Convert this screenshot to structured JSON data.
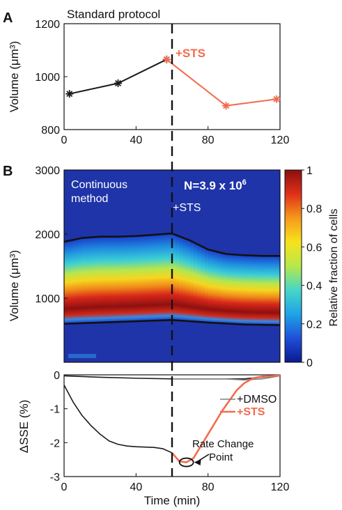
{
  "colors": {
    "black_series": "#1a1a1a",
    "sts": "#f26b4e",
    "dmso": "#808080",
    "heatmap_bg": "#1f34a8",
    "colormap": [
      "#0a1a8f",
      "#1f4fd8",
      "#1fa3e6",
      "#46d6c8",
      "#b6e84a",
      "#f7e31c",
      "#f59a1a",
      "#e0301a",
      "#8a0f0f"
    ]
  },
  "chart_data": [
    {
      "panel_label": "A",
      "type": "line",
      "title": "Standard protocol",
      "xlim": [
        0,
        120
      ],
      "ylim": [
        800,
        1200
      ],
      "xticks": [
        0,
        40,
        80,
        120
      ],
      "yticks": [
        800,
        1000,
        1200
      ],
      "ylabel": "Volume (μm³)",
      "series": [
        {
          "name": "",
          "x": [
            3,
            30,
            57
          ],
          "y": [
            935,
            975,
            1065
          ],
          "color": "#1a1a1a"
        },
        {
          "name": "+STS",
          "x": [
            57,
            90,
            118
          ],
          "y": [
            1065,
            890,
            915
          ],
          "color": "#f26b4e"
        }
      ],
      "vline_x": 60,
      "annotation": "+STS"
    },
    {
      "panel_label": "B",
      "type": "heatmap",
      "xlim": [
        0,
        120
      ],
      "ylim": [
        0,
        3000
      ],
      "yticks": [
        1000,
        2000,
        3000
      ],
      "ylabel": "Volume (μm³)",
      "inset_text_1": "Continuous",
      "inset_text_2": "method",
      "n_label": "N=3.9 x 10",
      "n_exponent": "6",
      "annotation": "+STS",
      "colorbar": {
        "label": "Relative fraction of cells",
        "ticks": [
          "0",
          "0.2",
          "0.4",
          "0.6",
          "0.8",
          "1"
        ],
        "range": [
          0,
          1
        ]
      },
      "peak_volume": {
        "x": [
          0,
          20,
          40,
          60,
          80,
          100,
          120
        ],
        "y": [
          920,
          950,
          990,
          1010,
          880,
          850,
          840
        ]
      },
      "upper_bound": {
        "x": [
          0,
          10,
          20,
          30,
          40,
          50,
          60,
          70,
          80,
          90,
          100,
          110,
          120
        ],
        "y": [
          1880,
          1940,
          1960,
          1960,
          1970,
          1990,
          2010,
          1900,
          1760,
          1690,
          1670,
          1660,
          1660
        ]
      },
      "lower_bound": {
        "x": [
          0,
          20,
          40,
          60,
          80,
          100,
          120
        ],
        "y": [
          600,
          620,
          640,
          660,
          620,
          590,
          580
        ]
      }
    },
    {
      "type": "line",
      "xlim": [
        0,
        120
      ],
      "ylim": [
        -3,
        0
      ],
      "xticks": [
        0,
        40,
        80,
        120
      ],
      "yticks": [
        0,
        -1,
        -2,
        -3
      ],
      "xlabel": "Time (min)",
      "ylabel": "ΔSSE (%)",
      "series": [
        {
          "name": "",
          "x": [
            0,
            20,
            40,
            60,
            80,
            100,
            120
          ],
          "y": [
            -0.03,
            -0.07,
            -0.1,
            -0.12,
            -0.12,
            -0.12,
            -0.02
          ],
          "color": "#1a1a1a"
        },
        {
          "name": "",
          "x": [
            0,
            5,
            10,
            15,
            20,
            25,
            30,
            35,
            40,
            45,
            50,
            55,
            60
          ],
          "y": [
            -0.3,
            -0.8,
            -1.2,
            -1.5,
            -1.75,
            -1.95,
            -2.05,
            -2.1,
            -2.12,
            -2.13,
            -2.14,
            -2.18,
            -2.3
          ],
          "color": "#1a1a1a"
        },
        {
          "name": "+DMSO",
          "x": [
            60,
            70,
            80,
            90,
            100,
            110,
            120
          ],
          "y": [
            -0.12,
            -0.12,
            -0.12,
            -0.12,
            -0.15,
            -0.12,
            -0.03
          ],
          "color": "#808080"
        },
        {
          "name": "+STS",
          "x": [
            60,
            64,
            68,
            72,
            76,
            80,
            84,
            88,
            92,
            96,
            100,
            105,
            110,
            120
          ],
          "y": [
            -2.3,
            -2.55,
            -2.58,
            -2.45,
            -2.1,
            -1.75,
            -1.4,
            -1.05,
            -0.75,
            -0.45,
            -0.25,
            -0.1,
            -0.05,
            -0.02
          ],
          "color": "#f26b4e"
        }
      ],
      "vline_x": 60,
      "legend": [
        "+DMSO",
        "+STS"
      ],
      "legend_position": "right",
      "annotation_line1": "Rate Change",
      "annotation_line2": "Point",
      "marker": {
        "x": 68,
        "y": -2.58
      }
    }
  ]
}
